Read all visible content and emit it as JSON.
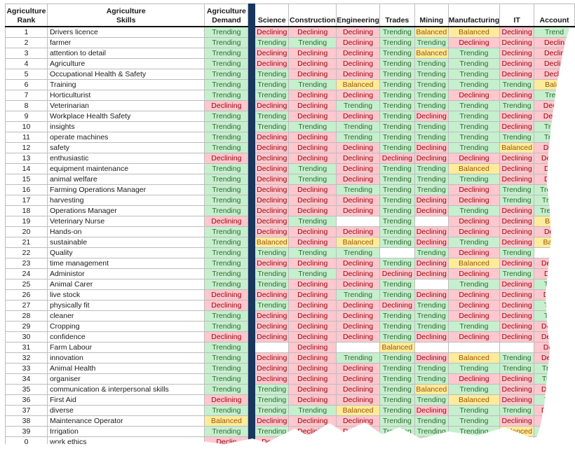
{
  "columns": {
    "rank": "Agriculture\nRank",
    "skill": "Agriculture\nSkills",
    "demand": "Agriculture\nDemand",
    "science": "Science",
    "construction": "Construction",
    "engineering": "Engineering",
    "trades": "Trades",
    "mining": "Mining",
    "manufacturing": "Manufacturing",
    "it": "IT",
    "accounting": "Account"
  },
  "rows": [
    {
      "rank": "1",
      "skill": "Drivers licence",
      "demand": "Trending",
      "science": "Declining",
      "construction": "Declining",
      "engineering": "Declining",
      "trades": "Trending",
      "mining": "Balanced",
      "manufacturing": "Balanced",
      "it": "Declining",
      "accounting": "Trend"
    },
    {
      "rank": "2",
      "skill": "farmer",
      "demand": "Trending",
      "science": "Trending",
      "construction": "Trending",
      "engineering": "Declining",
      "trades": "Trending",
      "mining": "Trending",
      "manufacturing": "Declining",
      "it": "Declining",
      "accounting": "Declin"
    },
    {
      "rank": "3",
      "skill": "attention to detail",
      "demand": "Trending",
      "science": "Declining",
      "construction": "Declining",
      "engineering": "Declining",
      "trades": "Trending",
      "mining": "Balanced",
      "manufacturing": "Trending",
      "it": "Declining",
      "accounting": "Declin"
    },
    {
      "rank": "4",
      "skill": "Agriculture",
      "demand": "Trending",
      "science": "Declining",
      "construction": "Declining",
      "engineering": "Declining",
      "trades": "Trending",
      "mining": "Trending",
      "manufacturing": "Trending",
      "it": "Declining",
      "accounting": "Declin"
    },
    {
      "rank": "5",
      "skill": "Occupational Health & Safety",
      "demand": "Trending",
      "science": "Trending",
      "construction": "Declining",
      "engineering": "Declining",
      "trades": "Trending",
      "mining": "Trending",
      "manufacturing": "Trending",
      "it": "Declining",
      "accounting": "Declin"
    },
    {
      "rank": "6",
      "skill": "Training",
      "demand": "Trending",
      "science": "Trending",
      "construction": "Trending",
      "engineering": "Balanced",
      "trades": "Trending",
      "mining": "Trending",
      "manufacturing": "Trending",
      "it": "Trending",
      "accounting": "Balan"
    },
    {
      "rank": "7",
      "skill": "Horticulturist",
      "demand": "Trending",
      "science": "Trending",
      "construction": "Declining",
      "engineering": "Declining",
      "trades": "Trending",
      "mining": "Trending",
      "manufacturing": "Declining",
      "it": "Declining",
      "accounting": "Trend"
    },
    {
      "rank": "8",
      "skill": "Veterinarian",
      "demand": "Declining",
      "science": "Declining",
      "construction": "Declining",
      "engineering": "Trending",
      "trades": "Trending",
      "mining": "Trending",
      "manufacturing": "Trending",
      "it": "Trending",
      "accounting": "Declini"
    },
    {
      "rank": "9",
      "skill": "Workplace Health Safety",
      "demand": "Trending",
      "science": "Trending",
      "construction": "Declining",
      "engineering": "Declining",
      "trades": "Trending",
      "mining": "Declining",
      "manufacturing": "Trending",
      "it": "Declining",
      "accounting": "Declini"
    },
    {
      "rank": "10",
      "skill": "insights",
      "demand": "Trending",
      "science": "Trending",
      "construction": "Trending",
      "engineering": "Trending",
      "trades": "Trending",
      "mining": "Trending",
      "manufacturing": "Trending",
      "it": "Declining",
      "accounting": "Trendi"
    },
    {
      "rank": "11",
      "skill": "operate machines",
      "demand": "Trending",
      "science": "Declining",
      "construction": "Declining",
      "engineering": "Trending",
      "trades": "Trending",
      "mining": "Trending",
      "manufacturing": "Trending",
      "it": "Trending",
      "accounting": "Trendi"
    },
    {
      "rank": "12",
      "skill": "safety",
      "demand": "Trending",
      "science": "Declining",
      "construction": "Declining",
      "engineering": "Declining",
      "trades": "Trending",
      "mining": "Declining",
      "manufacturing": "Trending",
      "it": "Balanced",
      "accounting": "Declini"
    },
    {
      "rank": "13",
      "skill": "enthusiastic",
      "demand": "Declining",
      "science": "Declining",
      "construction": "Declining",
      "engineering": "Declining",
      "trades": "Declining",
      "mining": "Declining",
      "manufacturing": "Declining",
      "it": "Declining",
      "accounting": "Declinin"
    },
    {
      "rank": "14",
      "skill": "equipment maintenance",
      "demand": "Trending",
      "science": "Declining",
      "construction": "Trending",
      "engineering": "Declining",
      "trades": "Trending",
      "mining": "Trending",
      "manufacturing": "Balanced",
      "it": "Declining",
      "accounting": "Declin"
    },
    {
      "rank": "15",
      "skill": "animal welfare",
      "demand": "Trending",
      "science": "Declining",
      "construction": "Trending",
      "engineering": "Declining",
      "trades": "Trending",
      "mining": "Trending",
      "manufacturing": "Trending",
      "it": "Declining",
      "accounting": "Declin"
    },
    {
      "rank": "16",
      "skill": "Farming Operations Manager",
      "demand": "Trending",
      "science": "Declining",
      "construction": "Declining",
      "engineering": "Trending",
      "trades": "Trending",
      "mining": "Trending",
      "manufacturing": "Declining",
      "it": "Trending",
      "accounting": "Trending"
    },
    {
      "rank": "17",
      "skill": "harvesting",
      "demand": "Trending",
      "science": "Declining",
      "construction": "Declining",
      "engineering": "Declining",
      "trades": "Trending",
      "mining": "Declining",
      "manufacturing": "Declining",
      "it": "Trending",
      "accounting": "Trendin"
    },
    {
      "rank": "18",
      "skill": "Operations Manager",
      "demand": "Trending",
      "science": "Declining",
      "construction": "Declining",
      "engineering": "Declining",
      "trades": "Trending",
      "mining": "Declining",
      "manufacturing": "Trending",
      "it": "Declining",
      "accounting": "Trending"
    },
    {
      "rank": "19",
      "skill": "Veterinary Nurse",
      "demand": "Declining",
      "science": "Declining",
      "construction": "Trending",
      "engineering": "",
      "trades": "Trending",
      "mining": "",
      "manufacturing": "Declining",
      "it": "Declining",
      "accounting": "Balan"
    },
    {
      "rank": "20",
      "skill": "Hands-on",
      "demand": "Trending",
      "science": "Declining",
      "construction": "Declining",
      "engineering": "Declining",
      "trades": "Trending",
      "mining": "Declining",
      "manufacturing": "Declining",
      "it": "Declining",
      "accounting": "Declin"
    },
    {
      "rank": "21",
      "skill": "sustainable",
      "demand": "Trending",
      "science": "Balanced",
      "construction": "Declining",
      "engineering": "Balanced",
      "trades": "Trending",
      "mining": "Declining",
      "manufacturing": "Trending",
      "it": "Declining",
      "accounting": "Balanc"
    },
    {
      "rank": "22",
      "skill": "Quality",
      "demand": "Trending",
      "science": "Trending",
      "construction": "Trending",
      "engineering": "Trending",
      "trades": "",
      "mining": "Trending",
      "manufacturing": "Declining",
      "it": "Trending",
      "accounting": ""
    },
    {
      "rank": "23",
      "skill": "time management",
      "demand": "Trending",
      "science": "Declining",
      "construction": "Declining",
      "engineering": "Declining",
      "trades": "Trending",
      "mining": "Declining",
      "manufacturing": "Balanced",
      "it": "Declining",
      "accounting": "Declinin"
    },
    {
      "rank": "24",
      "skill": "Administor",
      "demand": "Trending",
      "science": "Trending",
      "construction": "Trending",
      "engineering": "Declining",
      "trades": "Declining",
      "mining": "Declining",
      "manufacturing": "Declining",
      "it": "Trending",
      "accounting": "Declin"
    },
    {
      "rank": "25",
      "skill": "Animal Carer",
      "demand": "Trending",
      "science": "Trending",
      "construction": "Declining",
      "engineering": "Declining",
      "trades": "Trending",
      "mining": "",
      "manufacturing": "Trending",
      "it": "Declining",
      "accounting": "Trendi"
    },
    {
      "rank": "26",
      "skill": "live stock",
      "demand": "Declining",
      "science": "Declining",
      "construction": "Declining",
      "engineering": "Trending",
      "trades": "Trending",
      "mining": "Declining",
      "manufacturing": "Declining",
      "it": "Declining",
      "accounting": "Declini"
    },
    {
      "rank": "27",
      "skill": "physically fit",
      "demand": "Declining",
      "science": "Trending",
      "construction": "Declining",
      "engineering": "Declining",
      "trades": "Declining",
      "mining": "Trending",
      "manufacturing": "Declining",
      "it": "Declining",
      "accounting": "Trendi"
    },
    {
      "rank": "28",
      "skill": "cleaner",
      "demand": "Trending",
      "science": "Declining",
      "construction": "Declining",
      "engineering": "Declining",
      "trades": "Trending",
      "mining": "Trending",
      "manufacturing": "Declining",
      "it": "Declining",
      "accounting": "Trendi"
    },
    {
      "rank": "29",
      "skill": "Cropping",
      "demand": "Trending",
      "science": "Declining",
      "construction": "Declining",
      "engineering": "Declining",
      "trades": "Trending",
      "mining": "Trending",
      "manufacturing": "Trending",
      "it": "Declining",
      "accounting": "Declinin"
    },
    {
      "rank": "30",
      "skill": "confidence",
      "demand": "Declining",
      "science": "Declining",
      "construction": "Declining",
      "engineering": "Declining",
      "trades": "Trending",
      "mining": "Declining",
      "manufacturing": "Declining",
      "it": "Declining",
      "accounting": "Declinin"
    },
    {
      "rank": "31",
      "skill": "Farm Labour",
      "demand": "Trending",
      "science": "",
      "construction": "Declining",
      "engineering": "",
      "trades": "Balanced",
      "mining": "",
      "manufacturing": "",
      "it": "",
      "accounting": "Declini"
    },
    {
      "rank": "32",
      "skill": "innovation",
      "demand": "Trending",
      "science": "Declining",
      "construction": "Declining",
      "engineering": "Trending",
      "trades": "Trending",
      "mining": "Declining",
      "manufacturing": "Balanced",
      "it": "Trending",
      "accounting": "Declinin"
    },
    {
      "rank": "33",
      "skill": "Animal Health",
      "demand": "Trending",
      "science": "Declining",
      "construction": "Declining",
      "engineering": "Declining",
      "trades": "Trending",
      "mining": "Trending",
      "manufacturing": "Trending",
      "it": "Trending",
      "accounting": "Trendin"
    },
    {
      "rank": "34",
      "skill": "organiser",
      "demand": "Trending",
      "science": "Declining",
      "construction": "Declining",
      "engineering": "Declining",
      "trades": "Trending",
      "mining": "Trending",
      "manufacturing": "Declining",
      "it": "Declining",
      "accounting": "Trendin"
    },
    {
      "rank": "35",
      "skill": "communication & interpersonal skills",
      "demand": "Trending",
      "science": "Trending",
      "construction": "Declining",
      "engineering": "Declining",
      "trades": "Trending",
      "mining": "Balanced",
      "manufacturing": "Trending",
      "it": "Declining",
      "accounting": "Declinin"
    },
    {
      "rank": "36",
      "skill": "First Aid",
      "demand": "Declining",
      "science": "Trending",
      "construction": "Declining",
      "engineering": "Declining",
      "trades": "Trending",
      "mining": "Trending",
      "manufacturing": "Balanced",
      "it": "Declining",
      "accounting": "Trendi"
    },
    {
      "rank": "37",
      "skill": "diverse",
      "demand": "Trending",
      "science": "Trending",
      "construction": "Trending",
      "engineering": "Balanced",
      "trades": "Trending",
      "mining": "Declining",
      "manufacturing": "Trending",
      "it": "Trending",
      "accounting": "Declinin"
    },
    {
      "rank": "38",
      "skill": "Maintenance Operator",
      "demand": "Balanced",
      "science": "Declining",
      "construction": "Declining",
      "engineering": "Declining",
      "trades": "Trending",
      "mining": "Trending",
      "manufacturing": "Trending",
      "it": "Declining",
      "accounting": "Declinin"
    },
    {
      "rank": "39",
      "skill": "Irrigation",
      "demand": "Trending",
      "science": "Trending",
      "construction": "Declining",
      "engineering": "Declining",
      "trades": "Trending",
      "mining": "Trending",
      "manufacturing": "Trending",
      "it": "Balanced",
      "accounting": "Trendi"
    },
    {
      "rank": "0",
      "skill": "work ethics",
      "demand": "Declin",
      "science": "Declin",
      "construction": "Declining",
      "engineering": "D",
      "trades": "Trendin",
      "mining": "Declining",
      "manufacturing": "",
      "it": "",
      "accounting": ""
    }
  ],
  "colors": {
    "trending_bg": "#c6efce",
    "trending_text": "#2f6a2f",
    "declining_bg": "#ffc7ce",
    "declining_text": "#9c0006",
    "balanced_bg": "#ffeb9c",
    "balanced_text": "#9c5700",
    "separator": "#17375e"
  }
}
